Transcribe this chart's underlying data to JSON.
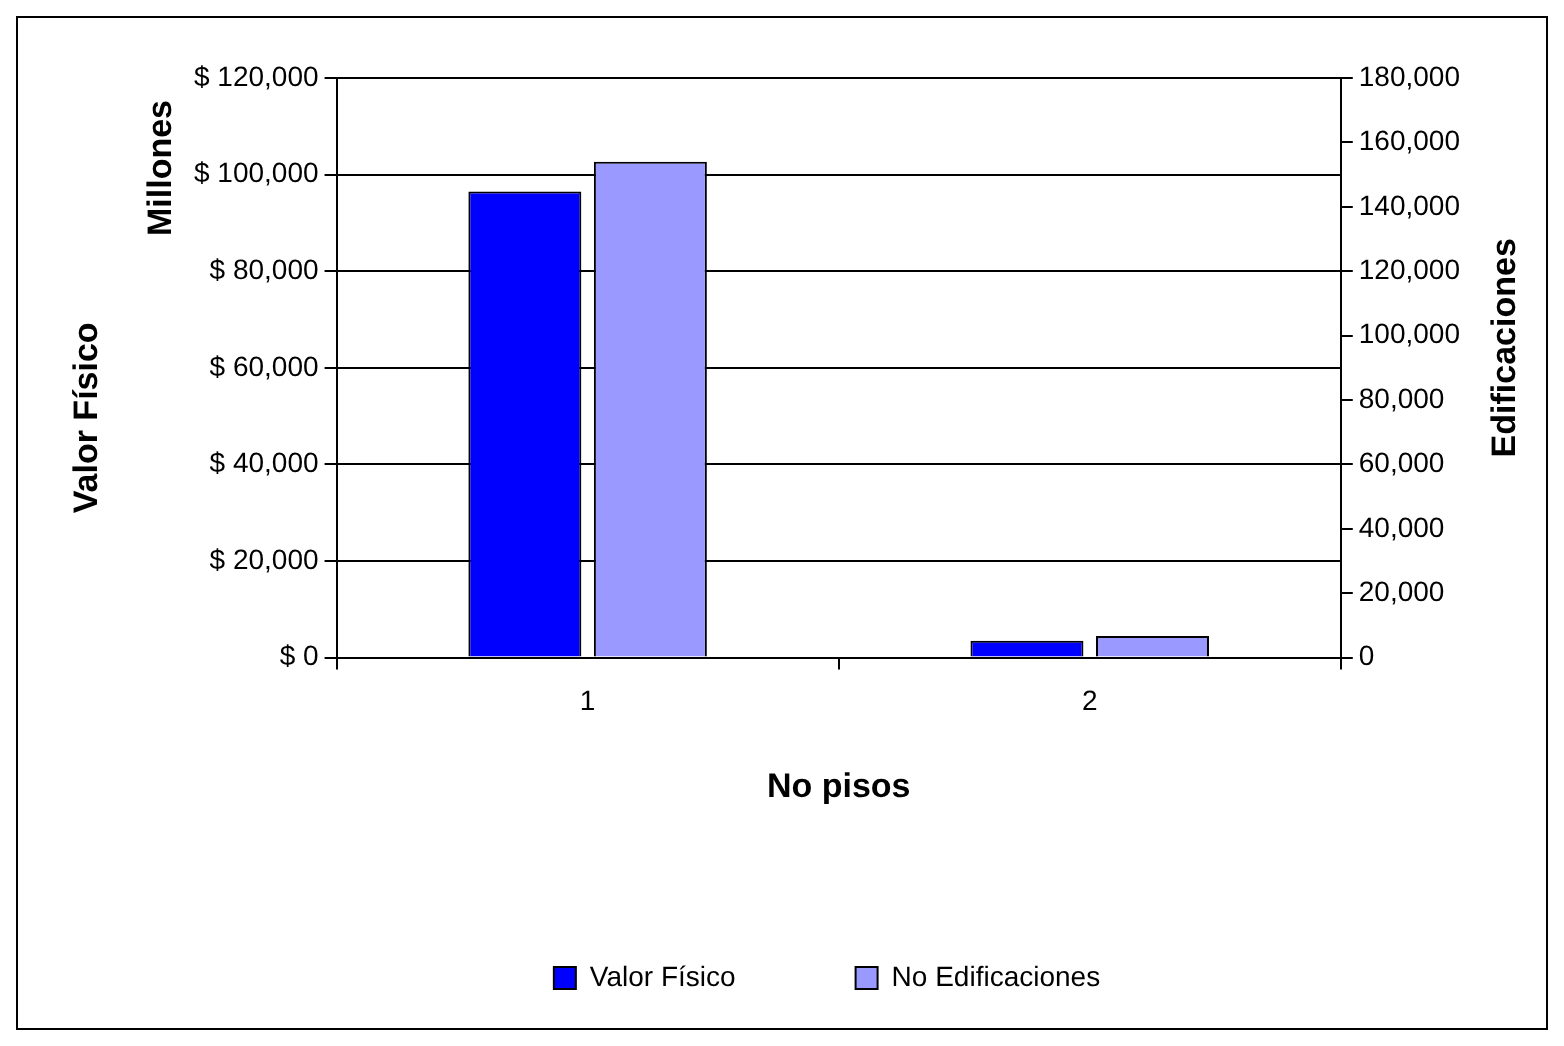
{
  "chart_data": {
    "type": "bar",
    "xlabel": "No pisos",
    "ylabel": "Valor Físico",
    "y2label": "Edificaciones",
    "annotations": [
      "Millones"
    ],
    "categories": [
      "1",
      "2"
    ],
    "series": [
      {
        "name": "Valor Físico",
        "color": "#0000ff",
        "values": [
          96500,
          3500
        ]
      },
      {
        "name": "No Edificaciones",
        "color": "#9999ff",
        "values": [
          154000,
          6700
        ],
        "axis": "y2"
      }
    ],
    "ylim": [
      0,
      120000
    ],
    "yticks": [
      {
        "value": 0,
        "label": "$ 0"
      },
      {
        "value": 20000,
        "label": "$ 20,000"
      },
      {
        "value": 40000,
        "label": "$ 40,000"
      },
      {
        "value": 60000,
        "label": "$ 60,000"
      },
      {
        "value": 80000,
        "label": "$ 80,000"
      },
      {
        "value": 100000,
        "label": "$ 100,000"
      },
      {
        "value": 120000,
        "label": "$ 120,000"
      }
    ],
    "y2lim": [
      0,
      180000
    ],
    "y2ticks": [
      {
        "value": 0,
        "label": "0"
      },
      {
        "value": 20000,
        "label": "20,000"
      },
      {
        "value": 40000,
        "label": "40,000"
      },
      {
        "value": 60000,
        "label": "60,000"
      },
      {
        "value": 80000,
        "label": "80,000"
      },
      {
        "value": 100000,
        "label": "100,000"
      },
      {
        "value": 120000,
        "label": "120,000"
      },
      {
        "value": 140000,
        "label": "140,000"
      },
      {
        "value": 160000,
        "label": "160,000"
      },
      {
        "value": 180000,
        "label": "180,000"
      }
    ],
    "grid": "y",
    "legend": "bottom"
  }
}
